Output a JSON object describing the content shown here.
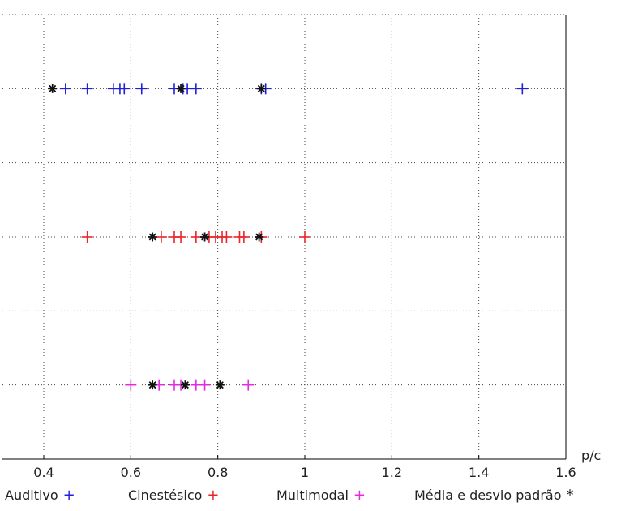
{
  "chart_data": {
    "type": "scatter",
    "title": "",
    "xlabel": "p/c",
    "ylabel": "",
    "xlim": [
      0.3,
      1.6
    ],
    "ylim": [
      0,
      3
    ],
    "xticks": [
      0.4,
      0.6,
      0.8,
      1.0,
      1.2,
      1.4,
      1.6
    ],
    "xtick_labels": [
      "0.4",
      "0.6",
      "0.8",
      "1",
      "1.2",
      "1.4",
      "1.6"
    ],
    "yticks": [
      0.5,
      1,
      1.5,
      2,
      2.5,
      3
    ],
    "grid": true,
    "grid_style": "dotted",
    "legend_position": "bottom",
    "series": [
      {
        "name": "Auditivo",
        "marker": "+",
        "color": "#1f1fdc",
        "y": 2.5,
        "x": [
          0.45,
          0.5,
          0.56,
          0.575,
          0.585,
          0.625,
          0.7,
          0.72,
          0.73,
          0.75,
          0.9,
          0.91,
          1.5
        ]
      },
      {
        "name": "Cinestésico",
        "marker": "+",
        "color": "#e8252a",
        "y": 1.5,
        "x": [
          0.5,
          0.67,
          0.7,
          0.715,
          0.75,
          0.78,
          0.795,
          0.81,
          0.82,
          0.85,
          0.86,
          0.9,
          1.0
        ]
      },
      {
        "name": "Multimodal",
        "marker": "+",
        "color": "#e22ce0",
        "y": 0.5,
        "x": [
          0.6,
          0.665,
          0.7,
          0.715,
          0.75,
          0.77,
          0.87
        ]
      },
      {
        "name": "Média e desvio padrão",
        "marker": "*",
        "color": "#111111",
        "points": [
          {
            "x": 0.42,
            "y": 2.5
          },
          {
            "x": 0.715,
            "y": 2.5
          },
          {
            "x": 0.9,
            "y": 2.5
          },
          {
            "x": 0.65,
            "y": 1.5
          },
          {
            "x": 0.77,
            "y": 1.5
          },
          {
            "x": 0.895,
            "y": 1.5
          },
          {
            "x": 0.65,
            "y": 0.5
          },
          {
            "x": 0.725,
            "y": 0.5
          },
          {
            "x": 0.805,
            "y": 0.5
          }
        ]
      }
    ]
  },
  "legend": [
    {
      "label": "Auditivo",
      "marker": "+",
      "color": "#1f1fdc"
    },
    {
      "label": "Cinestésico",
      "marker": "+",
      "color": "#e8252a"
    },
    {
      "label": "Multimodal",
      "marker": "+",
      "color": "#e22ce0"
    },
    {
      "label": "Média e desvio padrão",
      "marker": "*",
      "color": "#111111"
    }
  ]
}
